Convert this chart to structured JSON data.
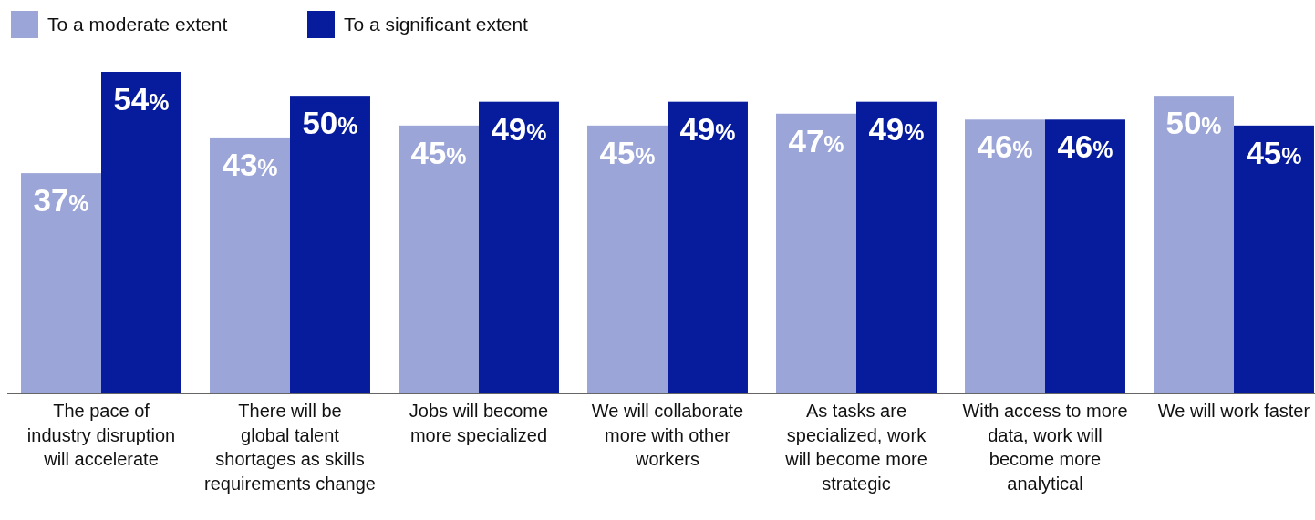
{
  "chart_data": {
    "type": "bar",
    "categories": [
      "The pace of industry disruption will accelerate",
      "There will be global talent shortages as skills requirements change",
      "Jobs will become more specialized",
      "We will collaborate more with other workers",
      "As tasks are specialized, work will become more strategic",
      "With access to more data, work will become more analytical",
      "We will work faster"
    ],
    "series": [
      {
        "name": "To a moderate extent",
        "color": "#9ba5d8",
        "values": [
          37,
          43,
          45,
          45,
          47,
          46,
          50
        ],
        "value_labels": [
          "37%",
          "43%",
          "45%",
          "45%",
          "47%",
          "46%",
          "50%"
        ]
      },
      {
        "name": "To a significant extent",
        "color": "#061c9c",
        "values": [
          54,
          50,
          49,
          49,
          49,
          46,
          45
        ],
        "value_labels": [
          "54%",
          "50%",
          "49%",
          "49%",
          "49%",
          "46%",
          "45%"
        ]
      }
    ],
    "legend": "top left"
  }
}
